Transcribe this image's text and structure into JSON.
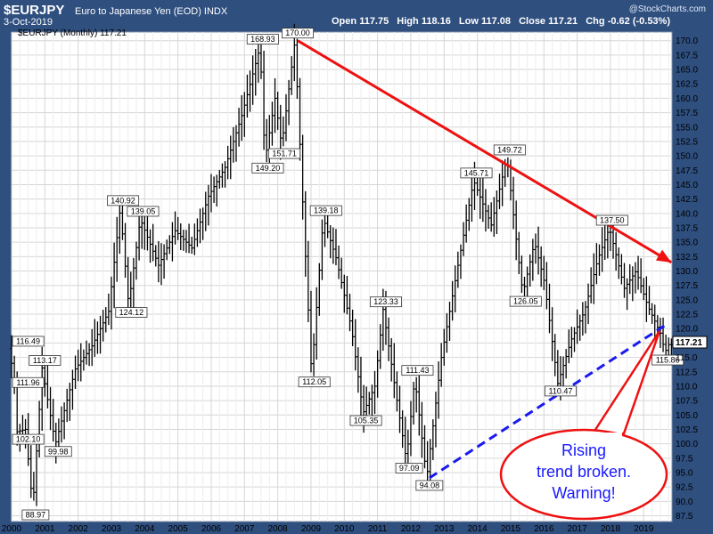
{
  "header": {
    "symbol": "$EURJPY",
    "name": "Euro to Japanese Yen (EOD)  INDX",
    "date": "3-Oct-2019",
    "brand": "@StockCharts.com",
    "open_label": "Open",
    "open": "117.75",
    "high_label": "High",
    "high": "118.16",
    "low_label": "Low",
    "low": "117.08",
    "close_label": "Close",
    "close": "117.21",
    "chg_label": "Chg",
    "chg": "-0.62 (-0.53%)"
  },
  "chart_data": {
    "type": "ohlc-bar",
    "legend": "$EURJPY (Monthly) 117.21",
    "last_price": "117.21",
    "ylim": [
      86.5,
      171.5
    ],
    "y_tick_labels": [
      "87.5",
      "90.0",
      "92.5",
      "95.0",
      "97.5",
      "100.0",
      "102.5",
      "105.0",
      "107.5",
      "110.0",
      "112.5",
      "115.0",
      "117.5",
      "120.0",
      "122.5",
      "125.0",
      "127.5",
      "130.0",
      "132.5",
      "135.0",
      "137.5",
      "140.0",
      "142.5",
      "145.0",
      "147.5",
      "150.0",
      "152.5",
      "155.0",
      "157.5",
      "160.0",
      "162.5",
      "165.0",
      "167.5",
      "170.0"
    ],
    "x_tick_labels": [
      "2000",
      "2001",
      "2002",
      "2003",
      "2004",
      "2005",
      "2006",
      "2007",
      "2008",
      "2009",
      "2010",
      "2011",
      "2012",
      "2013",
      "2014",
      "2015",
      "2016",
      "2017",
      "2018",
      "2019"
    ],
    "x_range": [
      2000.0,
      2019.83
    ],
    "key_points": [
      {
        "t": 2000.0,
        "v": 116.49,
        "label": "116.49"
      },
      {
        "t": 2000.15,
        "v": 111.96,
        "label": "111.96"
      },
      {
        "t": 2000.25,
        "v": 102.1,
        "label": "102.10"
      },
      {
        "t": 2000.5,
        "v": 102.5
      },
      {
        "t": 2000.72,
        "v": 88.97,
        "label": "88.97"
      },
      {
        "t": 2001.0,
        "v": 113.17,
        "label": "113.17"
      },
      {
        "t": 2001.4,
        "v": 99.98,
        "label": "99.98"
      },
      {
        "t": 2002.0,
        "v": 113.0
      },
      {
        "t": 2002.5,
        "v": 117.0
      },
      {
        "t": 2003.0,
        "v": 123.0
      },
      {
        "t": 2003.35,
        "v": 140.92,
        "label": "140.92"
      },
      {
        "t": 2003.6,
        "v": 124.12,
        "label": "124.12"
      },
      {
        "t": 2003.95,
        "v": 139.05,
        "label": "139.05"
      },
      {
        "t": 2004.5,
        "v": 131.0
      },
      {
        "t": 2005.0,
        "v": 137.0
      },
      {
        "t": 2005.5,
        "v": 134.0
      },
      {
        "t": 2006.0,
        "v": 143.0
      },
      {
        "t": 2006.5,
        "v": 148.0
      },
      {
        "t": 2007.0,
        "v": 157.0
      },
      {
        "t": 2007.55,
        "v": 168.93,
        "label": "168.93"
      },
      {
        "t": 2007.7,
        "v": 149.2,
        "label": "149.20"
      },
      {
        "t": 2008.0,
        "v": 160.0
      },
      {
        "t": 2008.2,
        "v": 151.71,
        "label": "151.71"
      },
      {
        "t": 2008.6,
        "v": 170.0,
        "label": "170.00"
      },
      {
        "t": 2008.85,
        "v": 140.0
      },
      {
        "t": 2009.1,
        "v": 112.05,
        "label": "112.05"
      },
      {
        "t": 2009.45,
        "v": 139.18,
        "label": "139.18"
      },
      {
        "t": 2009.85,
        "v": 132.0
      },
      {
        "t": 2010.3,
        "v": 120.0
      },
      {
        "t": 2010.65,
        "v": 105.35,
        "label": "105.35"
      },
      {
        "t": 2011.0,
        "v": 110.0
      },
      {
        "t": 2011.25,
        "v": 123.33,
        "label": "123.33"
      },
      {
        "t": 2011.6,
        "v": 110.0
      },
      {
        "t": 2011.95,
        "v": 97.09,
        "label": "97.09"
      },
      {
        "t": 2012.2,
        "v": 111.43,
        "label": "111.43"
      },
      {
        "t": 2012.56,
        "v": 94.08,
        "label": "94.08"
      },
      {
        "t": 2013.0,
        "v": 115.0
      },
      {
        "t": 2013.5,
        "v": 131.0
      },
      {
        "t": 2013.97,
        "v": 145.71,
        "label": "145.71"
      },
      {
        "t": 2014.5,
        "v": 138.0
      },
      {
        "t": 2014.97,
        "v": 149.72,
        "label": "149.72"
      },
      {
        "t": 2015.3,
        "v": 133.0
      },
      {
        "t": 2015.45,
        "v": 126.05,
        "label": "126.05"
      },
      {
        "t": 2015.8,
        "v": 135.0
      },
      {
        "t": 2016.1,
        "v": 128.0
      },
      {
        "t": 2016.5,
        "v": 110.47,
        "label": "110.47"
      },
      {
        "t": 2016.9,
        "v": 118.0
      },
      {
        "t": 2017.3,
        "v": 123.0
      },
      {
        "t": 2017.7,
        "v": 132.0
      },
      {
        "t": 2018.05,
        "v": 137.5,
        "label": "137.50"
      },
      {
        "t": 2018.5,
        "v": 127.0
      },
      {
        "t": 2018.85,
        "v": 130.0
      },
      {
        "t": 2019.2,
        "v": 124.0
      },
      {
        "t": 2019.6,
        "v": 119.0
      },
      {
        "t": 2019.72,
        "v": 115.86,
        "label": "115.86"
      },
      {
        "t": 2019.83,
        "v": 117.21
      }
    ],
    "trendlines": [
      {
        "name": "resistance",
        "style": "solid",
        "color": "#ee1111",
        "from": [
          2008.6,
          170.0
        ],
        "to": [
          2019.83,
          131.5
        ],
        "arrow": true
      },
      {
        "name": "support",
        "style": "dashed",
        "color": "#1a1aee",
        "from": [
          2012.56,
          94.08
        ],
        "to": [
          2019.65,
          120.6
        ],
        "arrow": false
      }
    ],
    "annotation": {
      "lines": [
        "Rising",
        "trend broken.",
        "Warning!"
      ],
      "text_color": "#1a1aff",
      "border_color": "#ee1111"
    }
  }
}
